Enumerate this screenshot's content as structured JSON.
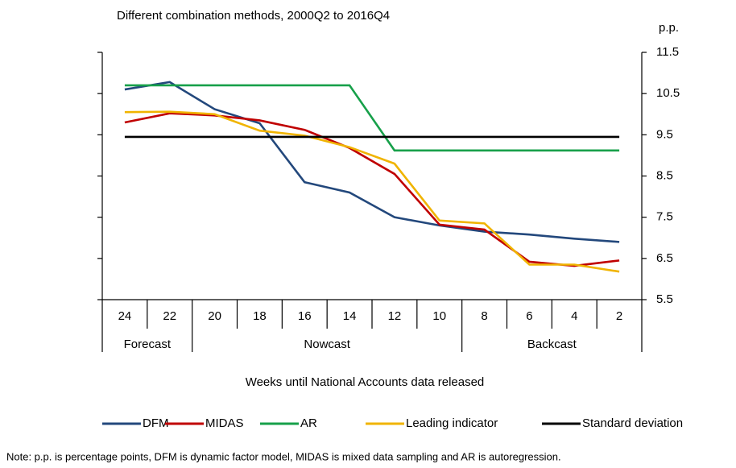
{
  "chart_data": {
    "type": "line",
    "title": "Different combination methods, 2000Q2 to 2016Q4",
    "y_label": "p.p.",
    "x_label": "Weeks until National Accounts data released",
    "categories": [
      "24",
      "22",
      "20",
      "18",
      "16",
      "14",
      "12",
      "10",
      "8",
      "6",
      "4",
      "2"
    ],
    "groups": [
      "Forecast",
      "Nowcast",
      "Backcast"
    ],
    "series": [
      {
        "name": "DFM",
        "color": "#23487c",
        "values": [
          10.6,
          10.78,
          10.12,
          9.78,
          8.35,
          8.1,
          7.5,
          7.3,
          7.15,
          7.08,
          6.98,
          6.9
        ]
      },
      {
        "name": "MIDAS",
        "color": "#c00000",
        "values": [
          9.8,
          10.02,
          9.97,
          9.85,
          9.62,
          9.18,
          8.55,
          7.32,
          7.2,
          6.42,
          6.32,
          6.45
        ]
      },
      {
        "name": "AR",
        "color": "#17a04a",
        "values": [
          10.7,
          10.7,
          10.7,
          10.7,
          10.7,
          10.7,
          9.12,
          9.12,
          9.12,
          9.12,
          9.12,
          9.12
        ]
      },
      {
        "name": "Leading indicator",
        "color": "#f0b400",
        "values": [
          10.05,
          10.06,
          10.0,
          9.6,
          9.48,
          9.2,
          8.8,
          7.42,
          7.35,
          6.35,
          6.35,
          6.18
        ]
      },
      {
        "name": "Standard deviation",
        "color": "#000000",
        "values": [
          9.45,
          9.45,
          9.45,
          9.45,
          9.45,
          9.45,
          9.45,
          9.45,
          9.45,
          9.45,
          9.45,
          9.45
        ]
      }
    ],
    "ylim": [
      5.5,
      11.5
    ],
    "yticks": [
      5.5,
      6.5,
      7.5,
      8.5,
      9.5,
      10.5,
      11.5
    ],
    "note": "Note: p.p. is percentage points, DFM is dynamic factor model, MIDAS is mixed data sampling and AR is autoregression."
  }
}
